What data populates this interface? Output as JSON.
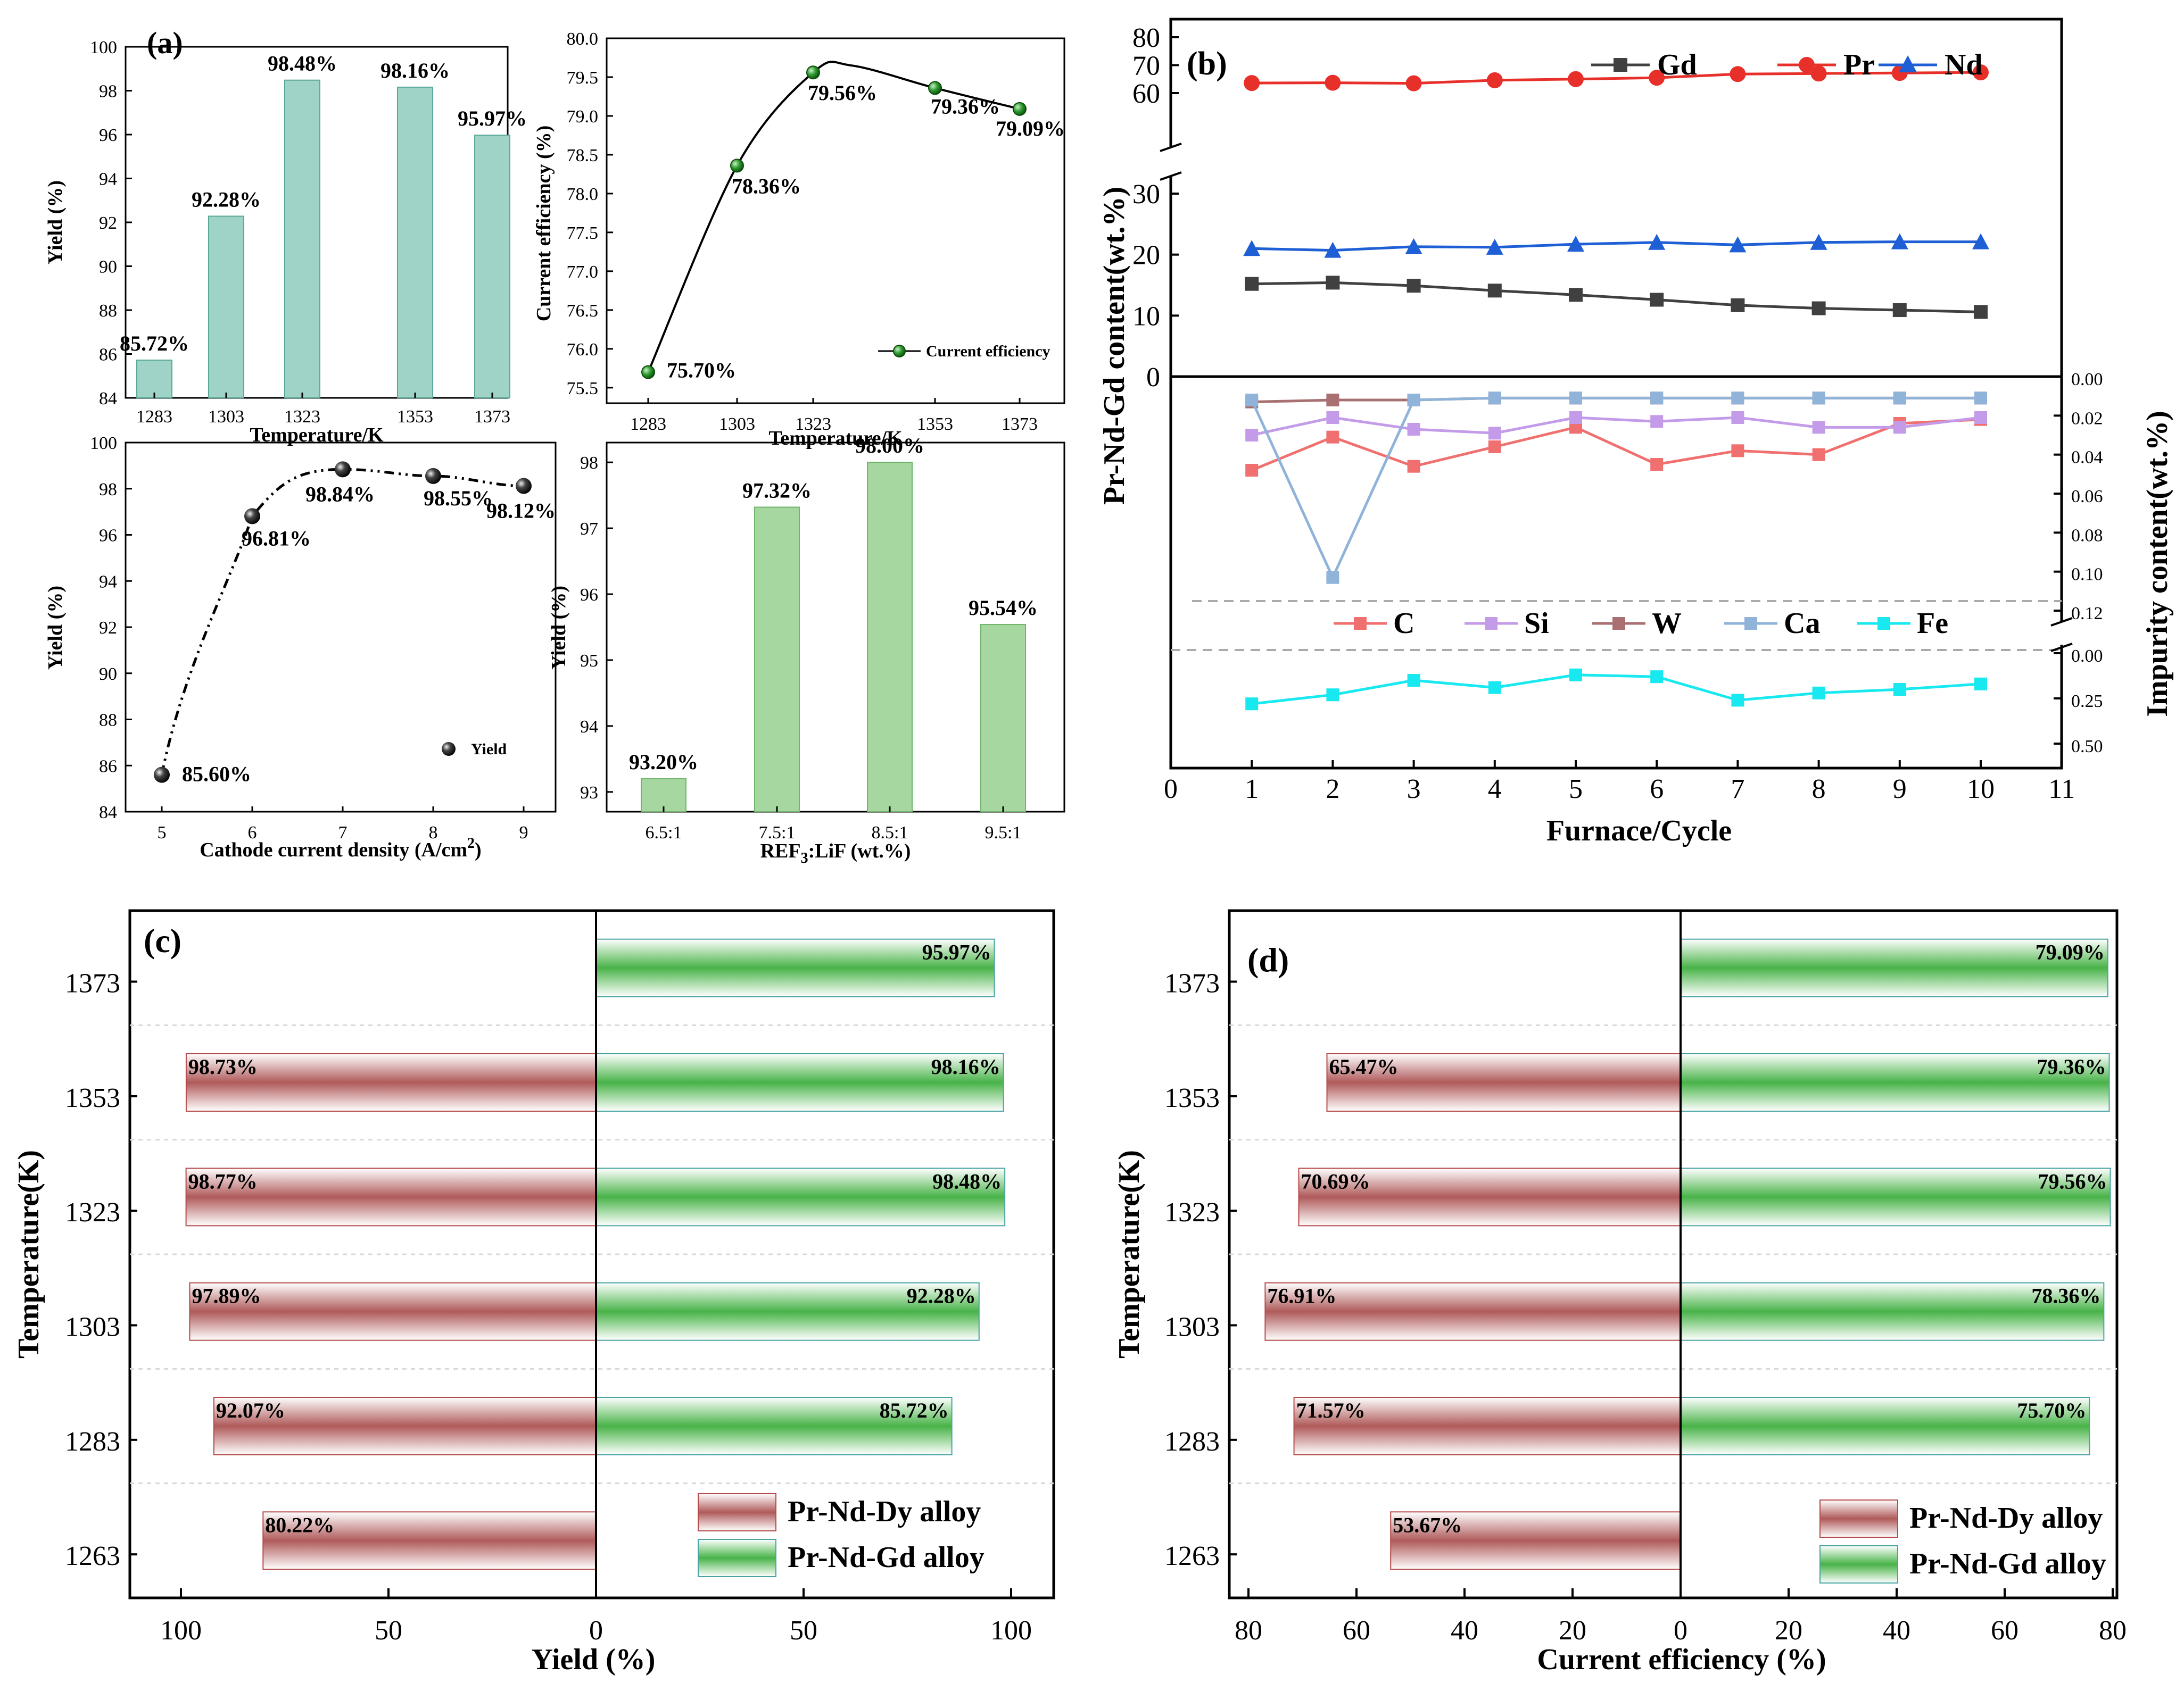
{
  "figure": {
    "panel_a": {
      "label": "(a)",
      "sub1": {
        "type": "bar",
        "categories": [
          "1283",
          "1303",
          "1323",
          "1353",
          "1373"
        ],
        "values": [
          85.72,
          92.28,
          98.48,
          98.16,
          95.97
        ],
        "labels": [
          "85.72%",
          "92.28%",
          "98.48%",
          "98.16%",
          "95.97%"
        ],
        "xlabel": "Temperature/K",
        "ylabel": "Yield (%)",
        "ylim": [
          84,
          100
        ],
        "yticks": [
          84,
          86,
          88,
          90,
          92,
          94,
          96,
          98,
          100
        ],
        "color": "#9fd3c7"
      },
      "sub2": {
        "type": "line",
        "x": [
          1283,
          1303,
          1323,
          1353,
          1373
        ],
        "xticks": [
          "1283",
          "1303",
          "1323",
          "1353",
          "1373"
        ],
        "values": [
          75.7,
          78.36,
          79.56,
          79.36,
          79.09
        ],
        "labels": [
          "75.70%",
          "78.36%",
          "79.56%",
          "79.36%",
          "79.09%"
        ],
        "xlabel": "Temperature/K",
        "ylabel": "Current efficiency (%)",
        "ylim": [
          75.3,
          80.0
        ],
        "yticks": [
          "75.5",
          "76.0",
          "76.5",
          "77.0",
          "77.5",
          "78.0",
          "78.5",
          "79.0",
          "79.5",
          "80.0"
        ],
        "legend": "Current efficiency",
        "color": "#2e9a2e"
      },
      "sub3": {
        "type": "scatter",
        "x": [
          5,
          6,
          7,
          8,
          9
        ],
        "values": [
          85.6,
          96.81,
          98.84,
          98.55,
          98.12
        ],
        "labels": [
          "85.60%",
          "96.81%",
          "98.84%",
          "98.55%",
          "98.12%"
        ],
        "xlabel": "Cathode current density (A/cm",
        "xlabel_sup": "2",
        "xlabel_end": ")",
        "ylabel": "Yield (%)",
        "ylim": [
          84,
          100
        ],
        "yticks": [
          84,
          86,
          88,
          90,
          92,
          94,
          96,
          98,
          100
        ],
        "xticks": [
          5,
          6,
          7,
          8,
          9
        ],
        "legend": "Yield"
      },
      "sub4": {
        "type": "bar",
        "categories": [
          "6.5:1",
          "7.5:1",
          "8.5:1",
          "9.5:1"
        ],
        "values": [
          93.2,
          97.32,
          98.0,
          95.54
        ],
        "labels": [
          "93.20%",
          "97.32%",
          "98.00%",
          "95.54%"
        ],
        "xlabel_pre": "REF",
        "xlabel_sub": "3",
        "xlabel_post": ":LiF (wt.%)",
        "ylabel": "Yield (%)",
        "ylim": [
          92.7,
          98.3
        ],
        "yticks": [
          93,
          94,
          95,
          96,
          97,
          98
        ],
        "color": "#a6d7a0"
      }
    },
    "panel_b": {
      "label": "(b)",
      "type": "line",
      "x": [
        1,
        2,
        3,
        4,
        5,
        6,
        7,
        8,
        9,
        10
      ],
      "xticks": [
        0,
        1,
        2,
        3,
        4,
        5,
        6,
        7,
        8,
        9,
        10,
        11
      ],
      "xlabel": "Furnace/Cycle",
      "ylabel_left": "Pr-Nd-Gd content(wt.%)",
      "ylabel_right": "Impurity content(wt.%)",
      "yticks_left_upper": [
        60,
        70,
        80
      ],
      "yticks_left_lower": [
        0,
        10,
        20,
        30
      ],
      "yticks_right_upper": [
        "0.00",
        "0.02",
        "0.04",
        "0.06",
        "0.08",
        "0.10",
        "0.12"
      ],
      "yticks_right_lower": [
        "0.00",
        "0.25",
        "0.50"
      ],
      "series_main": [
        {
          "name": "Gd",
          "color": "#404040",
          "values": [
            15.2,
            15.4,
            14.9,
            14.1,
            13.4,
            12.6,
            11.7,
            11.2,
            10.9,
            10.6
          ]
        },
        {
          "name": "Pr",
          "color": "#e8302b",
          "values": [
            63.6,
            63.7,
            63.5,
            64.6,
            65.0,
            65.5,
            66.8,
            67.0,
            67.2,
            67.4
          ]
        },
        {
          "name": "Nd",
          "color": "#1e5fd6",
          "values": [
            21.0,
            20.7,
            21.3,
            21.2,
            21.7,
            22.0,
            21.6,
            22.0,
            22.1,
            22.1
          ]
        }
      ],
      "series_impurity": [
        {
          "name": "C",
          "color": "#f07070",
          "values": [
            0.048,
            0.031,
            0.046,
            0.036,
            0.026,
            0.045,
            0.038,
            0.04,
            0.024,
            0.022
          ]
        },
        {
          "name": "Si",
          "color": "#c39be8",
          "values": [
            0.03,
            0.021,
            0.027,
            0.029,
            0.021,
            0.023,
            0.021,
            0.026,
            0.026,
            0.021
          ]
        },
        {
          "name": "W",
          "color": "#a87070",
          "values": [
            0.013,
            0.012,
            0.012,
            0.011,
            0.011,
            0.011,
            0.011,
            0.011,
            0.011,
            0.011
          ]
        },
        {
          "name": "Ca",
          "color": "#8fb3d9",
          "values": [
            0.012,
            0.103,
            0.012,
            0.011,
            0.011,
            0.011,
            0.011,
            0.011,
            0.011,
            0.011
          ]
        },
        {
          "name": "Fe",
          "color": "#18e8f0",
          "values": [
            0.28,
            0.23,
            0.15,
            0.19,
            0.12,
            0.13,
            0.26,
            0.22,
            0.2,
            0.17
          ]
        }
      ]
    },
    "panel_c": {
      "label": "(c)",
      "type": "bar",
      "categories": [
        "1263",
        "1283",
        "1303",
        "1323",
        "1353",
        "1373"
      ],
      "xlabel": "Yield (%)",
      "ylabel": "Temperature(K)",
      "xticks": [
        "100",
        "50",
        "0",
        "50",
        "100"
      ],
      "series": [
        {
          "name": "Pr-Nd-Dy alloy",
          "values": [
            80.22,
            92.07,
            97.89,
            98.77,
            98.73,
            null
          ],
          "labels": [
            "80.22%",
            "92.07%",
            "97.89%",
            "98.77%",
            "98.73%",
            ""
          ]
        },
        {
          "name": "Pr-Nd-Gd alloy",
          "values": [
            null,
            85.72,
            92.28,
            98.48,
            98.16,
            95.97
          ],
          "labels": [
            "",
            "85.72%",
            "92.28%",
            "98.48%",
            "98.16%",
            "95.97%"
          ]
        }
      ]
    },
    "panel_d": {
      "label": "(d)",
      "type": "bar",
      "categories": [
        "1263",
        "1283",
        "1303",
        "1323",
        "1353",
        "1373"
      ],
      "xlabel": "Current efficiency (%)",
      "ylabel": "Temperature(K)",
      "xticks": [
        "80",
        "60",
        "40",
        "20",
        "0",
        "20",
        "40",
        "60",
        "80"
      ],
      "series": [
        {
          "name": "Pr-Nd-Dy alloy",
          "values": [
            53.67,
            71.57,
            76.91,
            70.69,
            65.47,
            null
          ],
          "labels": [
            "53.67%",
            "71.57%",
            "76.91%",
            "70.69%",
            "65.47%",
            ""
          ]
        },
        {
          "name": "Pr-Nd-Gd alloy",
          "values": [
            null,
            75.7,
            78.36,
            79.56,
            79.36,
            79.09
          ],
          "labels": [
            "",
            "75.70%",
            "78.36%",
            "79.56%",
            "79.36%",
            "79.09%"
          ]
        }
      ]
    }
  }
}
